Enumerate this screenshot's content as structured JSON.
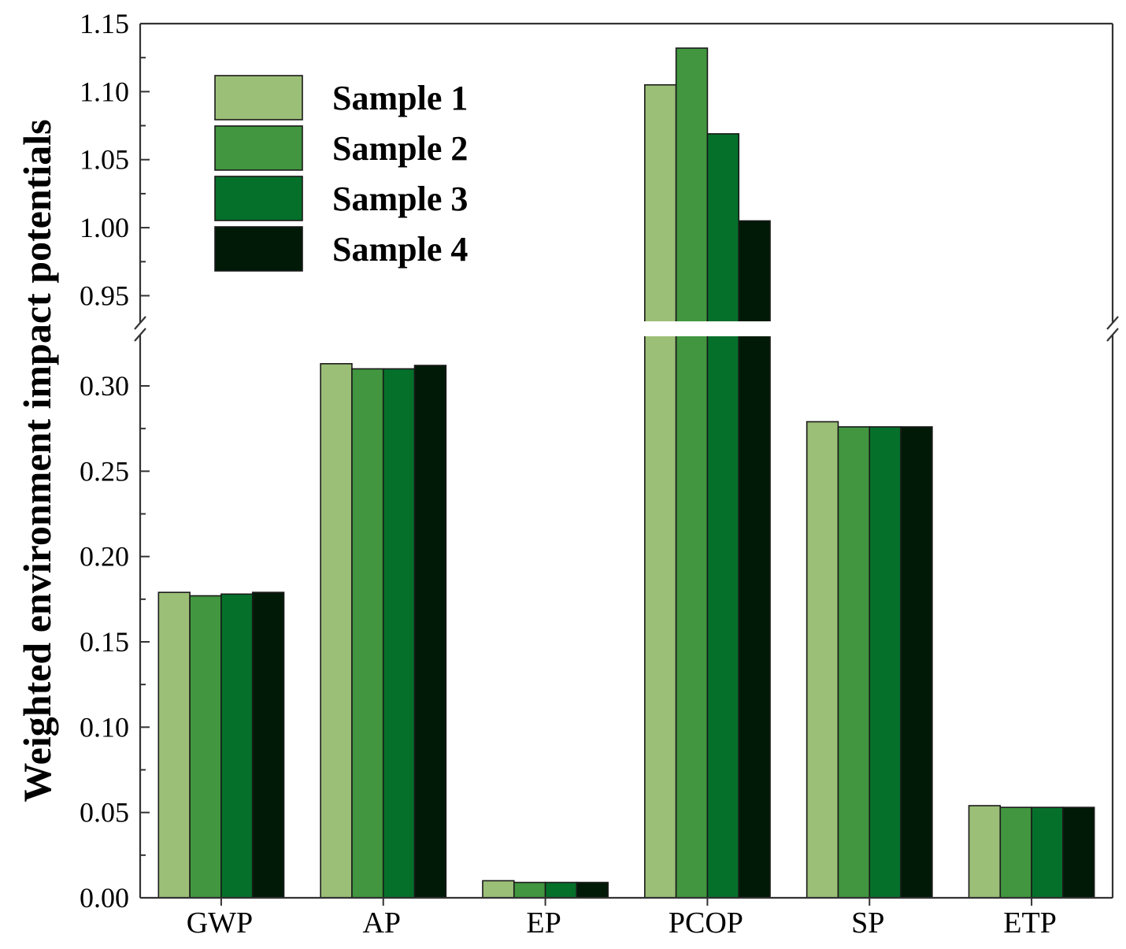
{
  "chart_data": {
    "type": "bar",
    "ylabel": "Weighted environment impact potentials",
    "categories": [
      "GWP",
      "AP",
      "EP",
      "PCOP",
      "SP",
      "ETP"
    ],
    "series": [
      {
        "name": "Sample 1",
        "color": "#9cbf78",
        "values": [
          0.179,
          0.313,
          0.01,
          1.105,
          0.279,
          0.054
        ]
      },
      {
        "name": "Sample 2",
        "color": "#41963f",
        "values": [
          0.177,
          0.31,
          0.009,
          1.132,
          0.276,
          0.053
        ]
      },
      {
        "name": "Sample 3",
        "color": "#05702a",
        "values": [
          0.178,
          0.31,
          0.009,
          1.069,
          0.276,
          0.053
        ]
      },
      {
        "name": "Sample 4",
        "color": "#011a07",
        "values": [
          0.179,
          0.312,
          0.009,
          1.005,
          0.276,
          0.053
        ]
      }
    ],
    "y_axis_break": {
      "lower_range": [
        0,
        0.33
      ],
      "upper_range": [
        0.93,
        1.15
      ]
    },
    "lower_ticks": [
      "0.00",
      "0.05",
      "0.10",
      "0.15",
      "0.20",
      "0.25",
      "0.30"
    ],
    "upper_ticks": [
      "0.95",
      "1.00",
      "1.05",
      "1.10",
      "1.15"
    ],
    "legend_position": "top-left",
    "grid": false
  }
}
